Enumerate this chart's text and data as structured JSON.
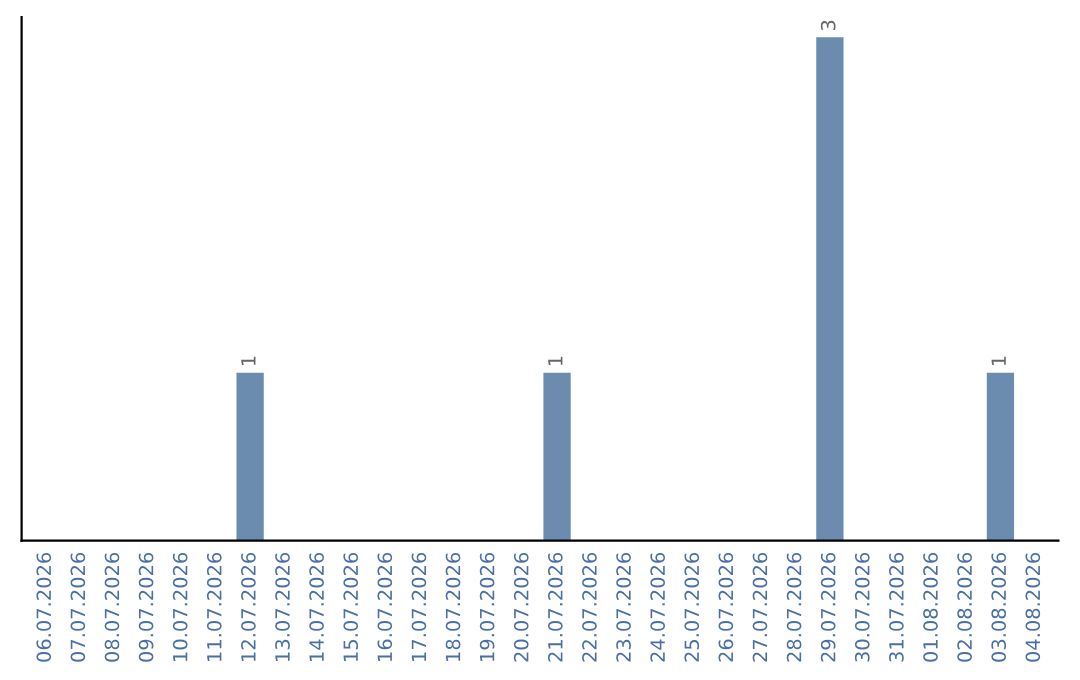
{
  "chart_data": {
    "type": "bar",
    "categories": [
      "06.07.2026",
      "07.07.2026",
      "08.07.2026",
      "09.07.2026",
      "10.07.2026",
      "11.07.2026",
      "12.07.2026",
      "13.07.2026",
      "14.07.2026",
      "15.07.2026",
      "16.07.2026",
      "17.07.2026",
      "18.07.2026",
      "19.07.2026",
      "20.07.2026",
      "21.07.2026",
      "22.07.2026",
      "23.07.2026",
      "24.07.2026",
      "25.07.2026",
      "26.07.2026",
      "27.07.2026",
      "28.07.2026",
      "29.07.2026",
      "30.07.2026",
      "31.07.2026",
      "01.08.2026",
      "02.08.2026",
      "03.08.2026",
      "04.08.2026"
    ],
    "values": [
      0,
      0,
      0,
      0,
      0,
      0,
      1,
      0,
      0,
      0,
      0,
      0,
      0,
      0,
      0,
      1,
      0,
      0,
      0,
      0,
      0,
      0,
      0,
      3,
      0,
      0,
      0,
      0,
      1,
      0
    ],
    "value_labels": [
      null,
      null,
      null,
      null,
      null,
      null,
      "1",
      null,
      null,
      null,
      null,
      null,
      null,
      null,
      null,
      "1",
      null,
      null,
      null,
      null,
      null,
      null,
      null,
      "3",
      null,
      null,
      null,
      null,
      "1",
      null
    ],
    "color": "#6b8cae",
    "grid": false,
    "legend": false,
    "tick_labels": "x"
  }
}
